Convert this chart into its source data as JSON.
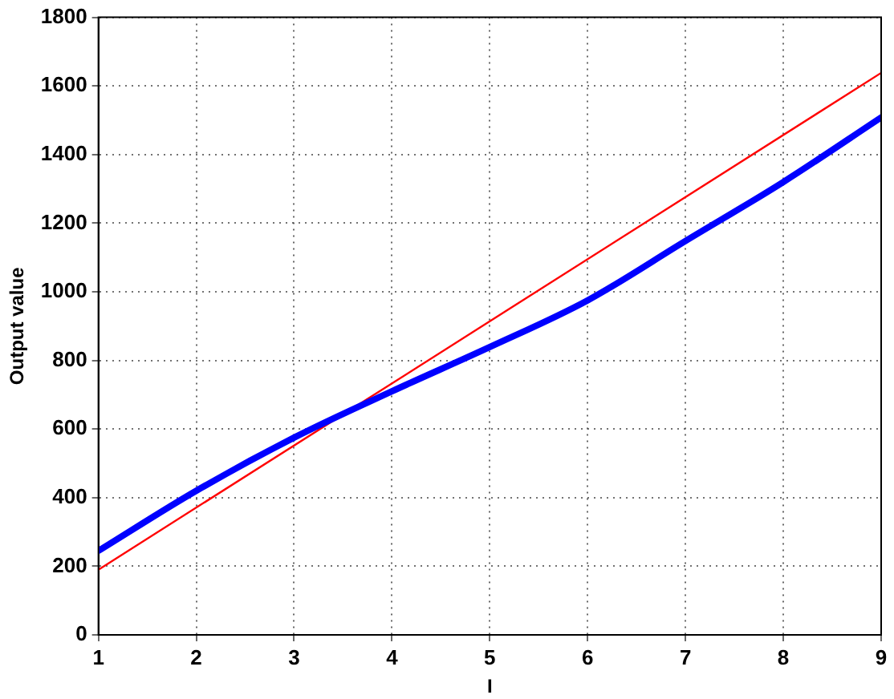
{
  "chart_data": {
    "type": "line",
    "xlabel": "I",
    "ylabel": "Output value",
    "x": [
      1,
      2,
      3,
      4,
      5,
      6,
      7,
      8,
      9
    ],
    "series": [
      {
        "color": "#0000ff",
        "values": [
          245,
          420,
          575,
          710,
          839,
          975,
          1148,
          1320,
          1508
        ]
      },
      {
        "color": "#ff0000",
        "x": [
          1,
          9
        ],
        "values": [
          190,
          1638
        ]
      }
    ],
    "xlim": [
      1,
      9
    ],
    "xticks": [
      1,
      2,
      3,
      4,
      5,
      6,
      7,
      8,
      9
    ],
    "ylim": [
      0,
      1800
    ],
    "yticks": [
      0,
      200,
      400,
      600,
      800,
      1000,
      1200,
      1400,
      1600,
      1800
    ],
    "grid": true,
    "legend": false,
    "marker": "none",
    "line_style": "solid"
  }
}
